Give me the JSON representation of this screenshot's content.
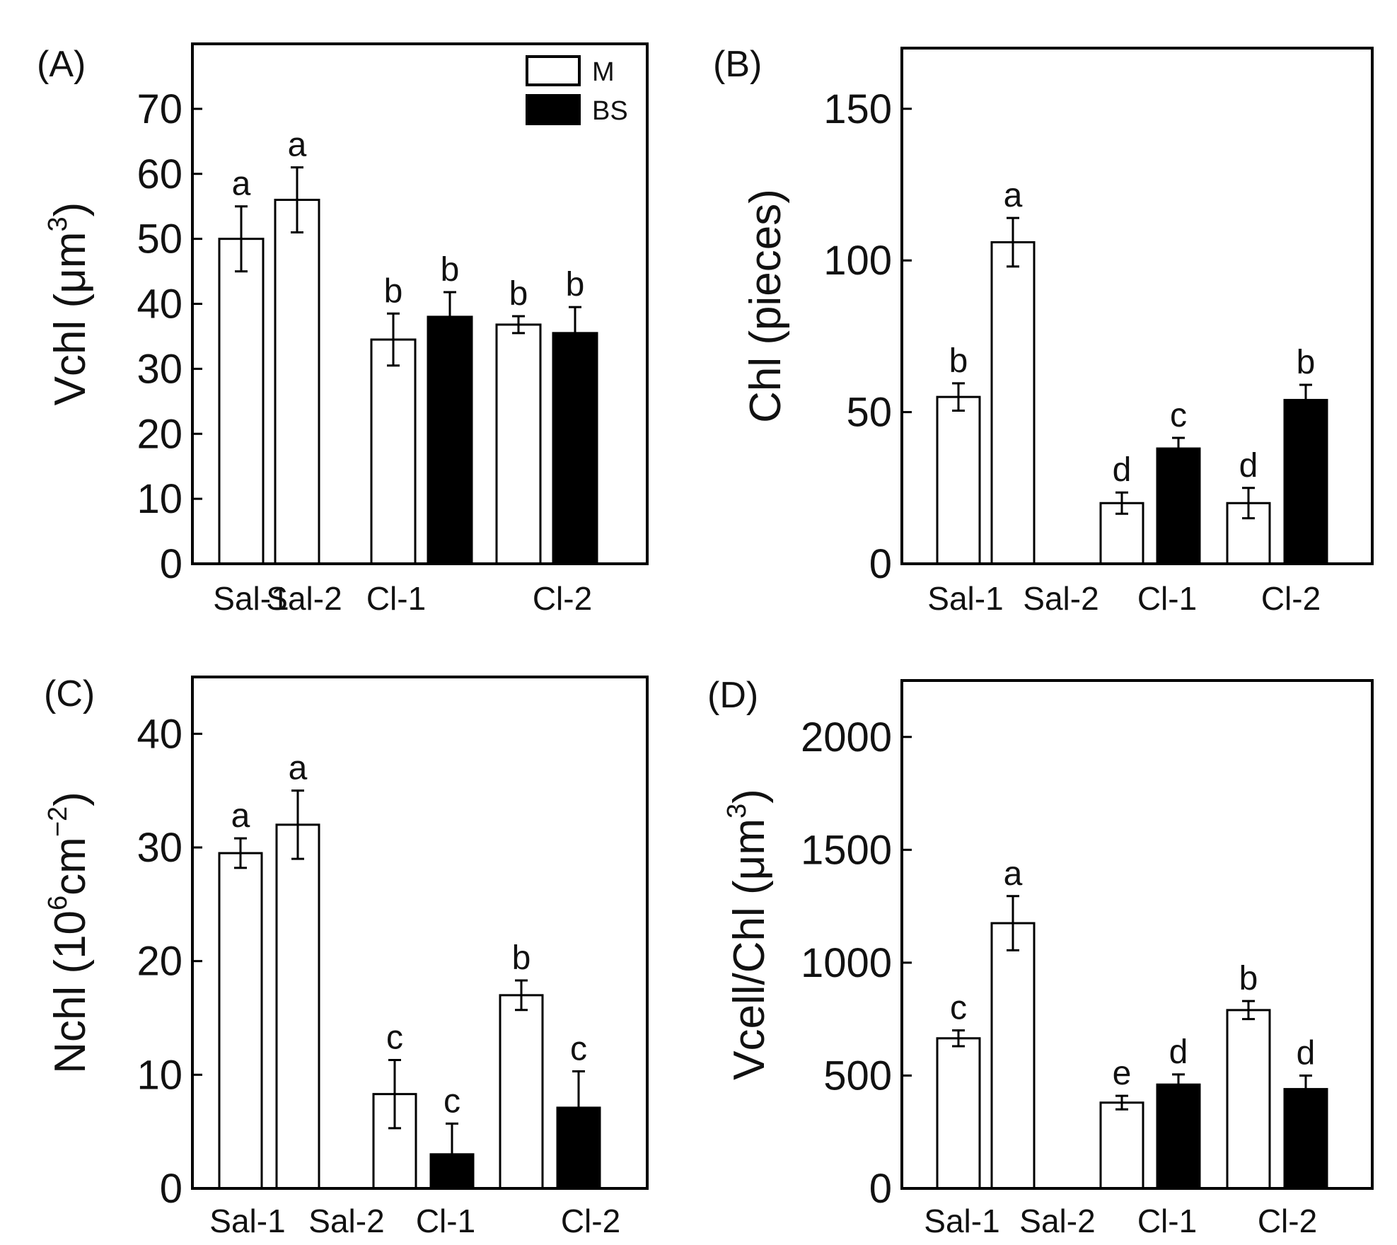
{
  "chart_data": [
    {
      "panel_label": "(A)",
      "type": "bar",
      "ylabel_main": "Vchl (μm",
      "ylabel_sup": "3",
      "ylabel_end": ")",
      "ylim": [
        0,
        80
      ],
      "yticks": [
        0,
        10,
        20,
        30,
        40,
        50,
        60,
        70
      ],
      "categories": [
        "Sal-1",
        "Sal-2",
        "Cl-1",
        "Cl-2"
      ],
      "legend": {
        "position": "top-right",
        "entries": [
          "M",
          "BS"
        ]
      },
      "bars": [
        {
          "category": "Sal-1",
          "series": "M",
          "value": 50,
          "error": 5,
          "sig": "a"
        },
        {
          "category": "Sal-2",
          "series": "M",
          "value": 56,
          "error": 5,
          "sig": "a"
        },
        {
          "category": "Cl-1",
          "series": "M",
          "value": 34.5,
          "error": 4,
          "sig": "b"
        },
        {
          "category": "Cl-1",
          "series": "BS",
          "value": 38,
          "error": 3.8,
          "sig": "b"
        },
        {
          "category": "Cl-2",
          "series": "M",
          "value": 36.8,
          "error": 1.3,
          "sig": "b"
        },
        {
          "category": "Cl-2",
          "series": "BS",
          "value": 35.5,
          "error": 4,
          "sig": "b"
        }
      ]
    },
    {
      "panel_label": "(B)",
      "type": "bar",
      "ylabel_main": "Chl (pieces)",
      "ylabel_sup": "",
      "ylabel_end": "",
      "ylim": [
        0,
        170
      ],
      "yticks": [
        0,
        50,
        100,
        150
      ],
      "categories": [
        "Sal-1",
        "Sal-2",
        "Cl-1",
        "Cl-2"
      ],
      "bars": [
        {
          "category": "Sal-1",
          "series": "M",
          "value": 55,
          "error": 4.5,
          "sig": "b"
        },
        {
          "category": "Sal-2",
          "series": "M",
          "value": 106,
          "error": 8,
          "sig": "a"
        },
        {
          "category": "Cl-1",
          "series": "M",
          "value": 20,
          "error": 3.5,
          "sig": "d"
        },
        {
          "category": "Cl-1",
          "series": "BS",
          "value": 38,
          "error": 3.5,
          "sig": "c"
        },
        {
          "category": "Cl-2",
          "series": "M",
          "value": 20,
          "error": 5,
          "sig": "d"
        },
        {
          "category": "Cl-2",
          "series": "BS",
          "value": 54,
          "error": 5,
          "sig": "b"
        }
      ]
    },
    {
      "panel_label": "(C)",
      "type": "bar",
      "ylabel_main": "Nchl (10",
      "ylabel_sup": "6",
      "ylabel_mid": "cm",
      "ylabel_sup2": "−2",
      "ylabel_end": ")",
      "ylim": [
        0,
        45
      ],
      "yticks": [
        0,
        10,
        20,
        30,
        40
      ],
      "categories": [
        "Sal-1",
        "Sal-2",
        "Cl-1",
        "Cl-2"
      ],
      "bars": [
        {
          "category": "Sal-1",
          "series": "M",
          "value": 29.5,
          "error": 1.3,
          "sig": "a"
        },
        {
          "category": "Sal-2",
          "series": "M",
          "value": 32,
          "error": 3,
          "sig": "a"
        },
        {
          "category": "Cl-1",
          "series": "M",
          "value": 8.3,
          "error": 3,
          "sig": "c"
        },
        {
          "category": "Cl-1",
          "series": "BS",
          "value": 3,
          "error": 2.7,
          "sig": "c"
        },
        {
          "category": "Cl-2",
          "series": "M",
          "value": 17,
          "error": 1.3,
          "sig": "b"
        },
        {
          "category": "Cl-2",
          "series": "BS",
          "value": 7.1,
          "error": 3.2,
          "sig": "c"
        }
      ]
    },
    {
      "panel_label": "(D)",
      "type": "bar",
      "ylabel_main": "Vcell/Chl (μm",
      "ylabel_sup": "3",
      "ylabel_end": ")",
      "ylim": [
        0,
        2250
      ],
      "yticks": [
        0,
        500,
        1000,
        1500,
        2000
      ],
      "categories": [
        "Sal-1",
        "Sal-2",
        "Cl-1",
        "Cl-2"
      ],
      "bars": [
        {
          "category": "Sal-1",
          "series": "M",
          "value": 665,
          "error": 35,
          "sig": "c"
        },
        {
          "category": "Sal-2",
          "series": "M",
          "value": 1175,
          "error": 120,
          "sig": "a"
        },
        {
          "category": "Cl-1",
          "series": "M",
          "value": 380,
          "error": 30,
          "sig": "e"
        },
        {
          "category": "Cl-1",
          "series": "BS",
          "value": 460,
          "error": 45,
          "sig": "d"
        },
        {
          "category": "Cl-2",
          "series": "M",
          "value": 790,
          "error": 40,
          "sig": "b"
        },
        {
          "category": "Cl-2",
          "series": "BS",
          "value": 440,
          "error": 60,
          "sig": "d"
        }
      ]
    }
  ],
  "colors": {
    "M": "#ffffff",
    "BS": "#000000",
    "axis": "#000000"
  }
}
